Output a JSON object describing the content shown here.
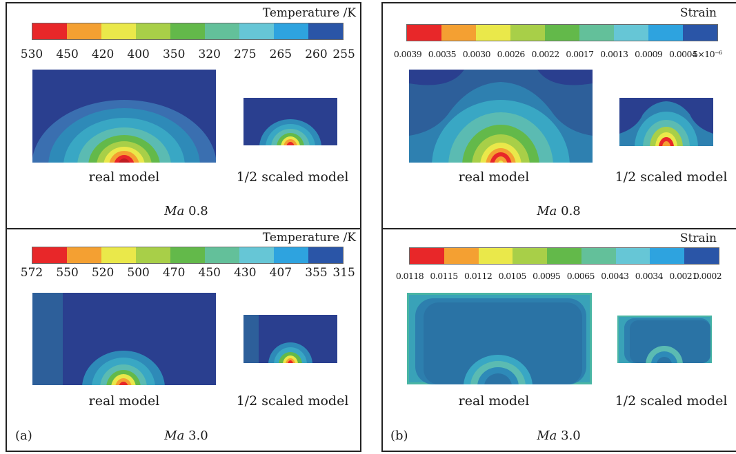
{
  "palette": [
    "#e82729",
    "#f4a032",
    "#eae84a",
    "#a8cf48",
    "#63b94a",
    "#63c09a",
    "#66c6d6",
    "#2ea3df",
    "#2a55a7"
  ],
  "background_color": "#2a3f8f",
  "panel_a": {
    "label": "(a)",
    "top": {
      "colorbar_title": "Temperature /K",
      "ticks": [
        "530",
        "450",
        "420",
        "400",
        "350",
        "320",
        "275",
        "265",
        "260",
        "255"
      ],
      "real_caption": "real model",
      "scaled_caption": "1/2 scaled model",
      "mach_prefix": "Ma",
      "mach_value": "0.8"
    },
    "bottom": {
      "colorbar_title": "Temperature /K",
      "ticks": [
        "572",
        "550",
        "520",
        "500",
        "470",
        "450",
        "430",
        "407",
        "355",
        "315"
      ],
      "real_caption": "real model",
      "scaled_caption": "1/2 scaled model",
      "mach_prefix": "Ma",
      "mach_value": "3.0"
    }
  },
  "panel_b": {
    "label": "(b)",
    "top": {
      "colorbar_title": "Strain",
      "ticks": [
        "0.0039",
        "0.0035",
        "0.0030",
        "0.0026",
        "0.0022",
        "0.0017",
        "0.0013",
        "0.0009",
        "0.0004",
        "5×10⁻⁶"
      ],
      "real_caption": "real model",
      "scaled_caption": "1/2 scaled model",
      "mach_prefix": "Ma",
      "mach_value": "0.8"
    },
    "bottom": {
      "colorbar_title": "Strain",
      "ticks": [
        "0.0118",
        "0.0115",
        "0.0112",
        "0.0105",
        "0.0095",
        "0.0065",
        "0.0043",
        "0.0034",
        "0.0021",
        "0.0002"
      ],
      "real_caption": "real model",
      "scaled_caption": "1/2 scaled model",
      "mach_prefix": "Ma",
      "mach_value": "3.0"
    }
  }
}
